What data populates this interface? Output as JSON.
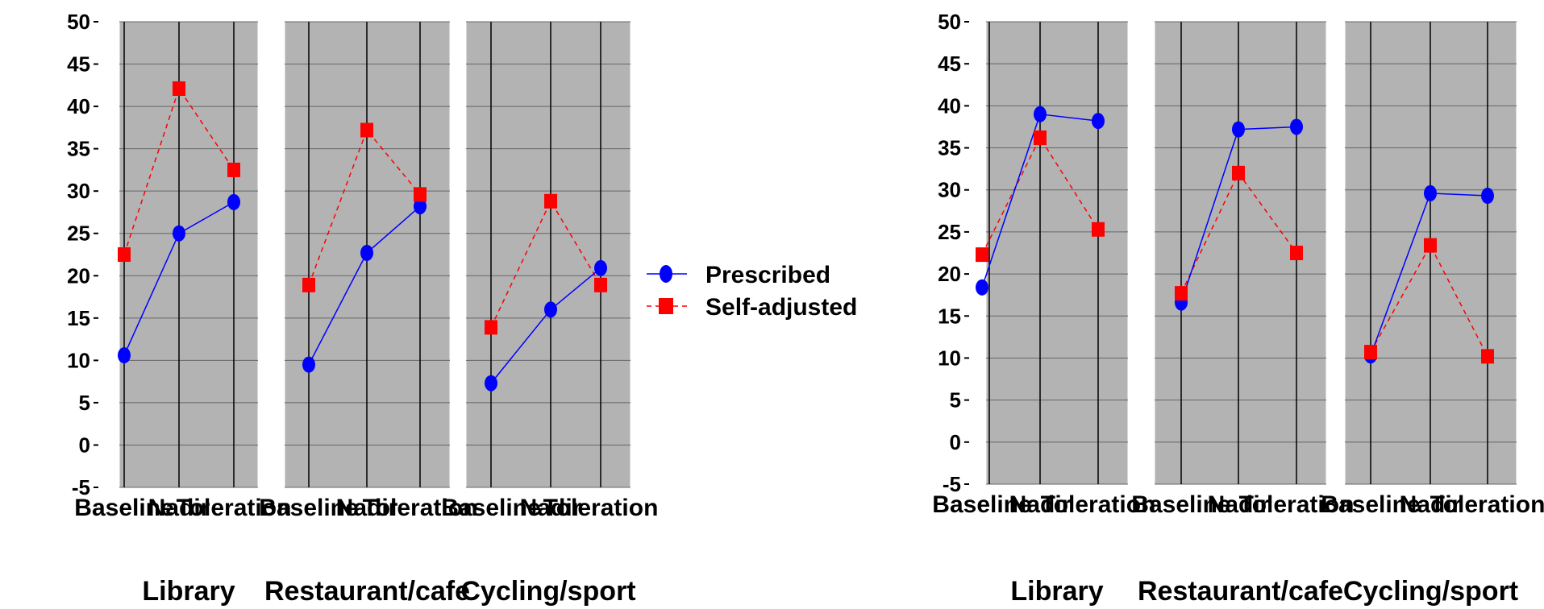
{
  "colors": {
    "prescribed": "#0000ff",
    "self_adjusted": "#ff0000",
    "panel_bg": "#b3b3b3"
  },
  "legend": {
    "prescribed_label": "Prescribed",
    "self_adjusted_label": "Self-adjusted"
  },
  "chart_data": [
    {
      "type": "line",
      "ylim": [
        -5,
        50
      ],
      "yticks": [
        -5,
        0,
        5,
        10,
        15,
        20,
        25,
        30,
        35,
        40,
        45,
        50
      ],
      "grid": true,
      "legend_position": "right",
      "categories": [
        "Baseline",
        "Nadir",
        "Toleration"
      ],
      "panels": [
        {
          "group": "Library",
          "values": {
            "Prescribed": [
              10.6,
              25.0,
              28.7
            ],
            "Self-adjusted": [
              22.5,
              42.1,
              32.5
            ]
          }
        },
        {
          "group": "Restaurant/cafe",
          "values": {
            "Prescribed": [
              9.5,
              22.7,
              28.2
            ],
            "Self-adjusted": [
              18.9,
              37.2,
              29.6
            ]
          }
        },
        {
          "group": "Cycling/sport",
          "values": {
            "Prescribed": [
              7.3,
              16.0,
              20.9
            ],
            "Self-adjusted": [
              13.9,
              28.8,
              18.9
            ]
          }
        }
      ]
    },
    {
      "type": "line",
      "ylim": [
        -5,
        50
      ],
      "yticks": [
        -5,
        0,
        5,
        10,
        15,
        20,
        25,
        30,
        35,
        40,
        45,
        50
      ],
      "grid": true,
      "legend_position": "right",
      "categories": [
        "Baseline",
        "Nadir",
        "Toleration"
      ],
      "panels": [
        {
          "group": "Library",
          "values": {
            "Prescribed": [
              18.4,
              39.0,
              38.2
            ],
            "Self-adjusted": [
              22.3,
              36.2,
              25.3
            ]
          }
        },
        {
          "group": "Restaurant/cafe",
          "values": {
            "Prescribed": [
              16.6,
              37.2,
              37.5
            ],
            "Self-adjusted": [
              17.7,
              32.0,
              22.5
            ]
          }
        },
        {
          "group": "Cycling/sport",
          "values": {
            "Prescribed": [
              10.3,
              29.6,
              29.3
            ],
            "Self-adjusted": [
              10.7,
              23.4,
              10.2
            ]
          }
        }
      ]
    }
  ]
}
